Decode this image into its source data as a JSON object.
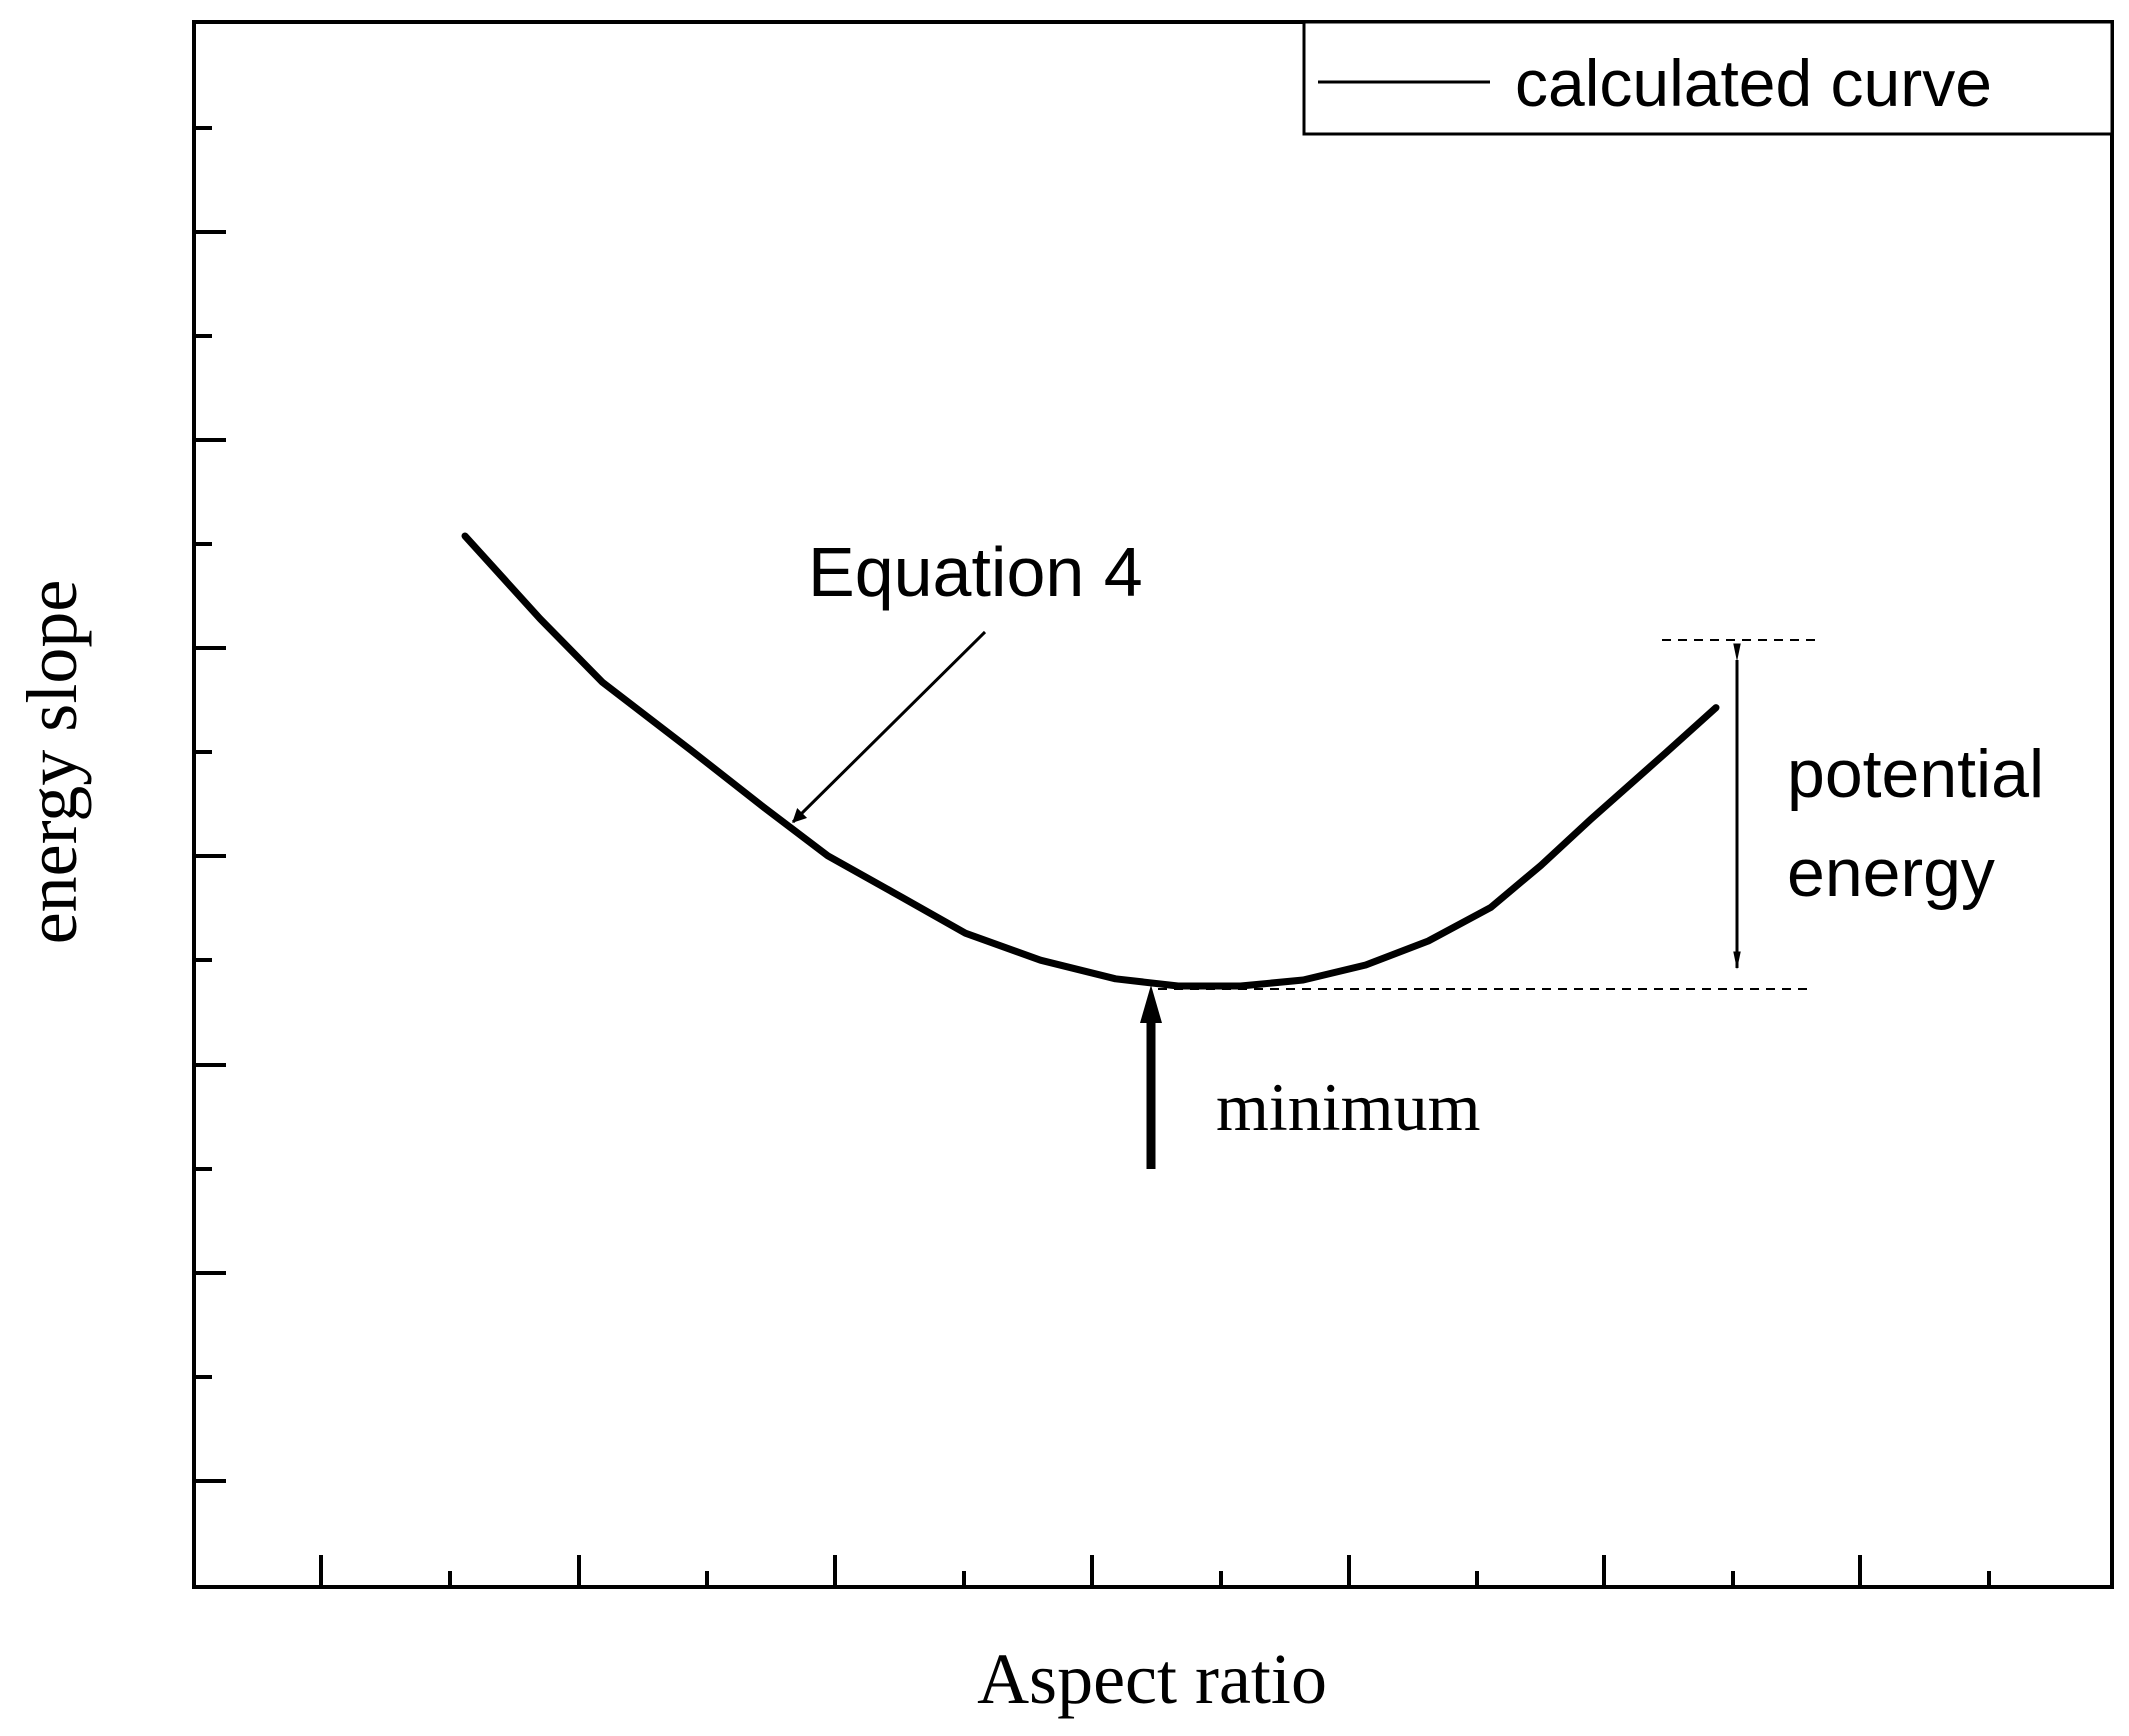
{
  "chart_data": {
    "type": "line",
    "title": "",
    "xlabel": "Aspect ratio",
    "ylabel": "energy slope",
    "x_tick_labels_shown": false,
    "y_tick_labels_shown": false,
    "grid": false,
    "legend_position": "top-right",
    "series": [
      {
        "name": "calculated curve",
        "color": "#000000",
        "x": [
          0.0,
          0.06,
          0.11,
          0.18,
          0.24,
          0.29,
          0.35,
          0.4,
          0.46,
          0.52,
          0.57,
          0.62,
          0.67,
          0.72,
          0.77,
          0.82,
          0.86,
          0.9,
          0.96,
          1.0
        ],
        "y": [
          1.0,
          0.862,
          0.756,
          0.644,
          0.546,
          0.467,
          0.397,
          0.338,
          0.293,
          0.262,
          0.25,
          0.25,
          0.26,
          0.285,
          0.325,
          0.381,
          0.451,
          0.528,
          0.639,
          0.714
        ]
      }
    ],
    "annotations": {
      "equation_label": "Equation 4",
      "minimum_label": "minimum",
      "potential_label_line1": "potential",
      "potential_label_line2": "energy"
    }
  }
}
